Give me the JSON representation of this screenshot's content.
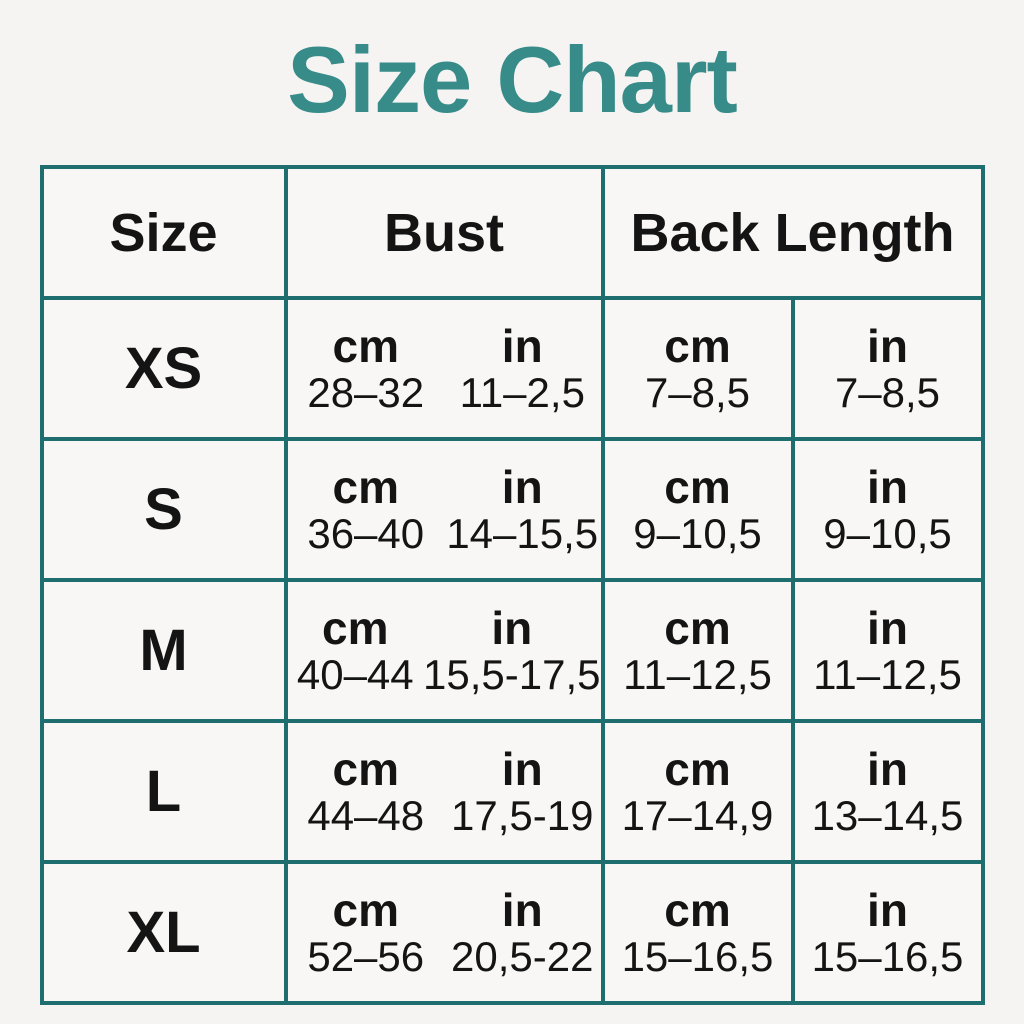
{
  "colors": {
    "background": "#f5f4f2",
    "cell_background": "#f8f7f5",
    "grid_line_teal": "#1e6e70",
    "title_teal": "#378b89",
    "text": "#141414"
  },
  "chart_data": {
    "type": "table",
    "title": "Size Chart",
    "columns": [
      "Size",
      "Bust",
      "Back Length"
    ],
    "unit_labels": {
      "cm": "cm",
      "in": "in"
    },
    "rows": [
      {
        "size": "XS",
        "bust_cm": "28–32",
        "bust_in": "11–2,5",
        "back_length_cm": "7–8,5",
        "back_length_in": "7–8,5"
      },
      {
        "size": "S",
        "bust_cm": "36–40",
        "bust_in": "14–15,5",
        "back_length_cm": "9–10,5",
        "back_length_in": "9–10,5"
      },
      {
        "size": "M",
        "bust_cm": "40–44",
        "bust_in": "15,5-17,5",
        "back_length_cm": "11–12,5",
        "back_length_in": "11–12,5"
      },
      {
        "size": "L",
        "bust_cm": "44–48",
        "bust_in": "17,5-19",
        "back_length_cm": "17–14,9",
        "back_length_in": "13–14,5"
      },
      {
        "size": "XL",
        "bust_cm": "52–56",
        "bust_in": "20,5-22",
        "back_length_cm": "15–16,5",
        "back_length_in": "15–16,5"
      }
    ]
  }
}
